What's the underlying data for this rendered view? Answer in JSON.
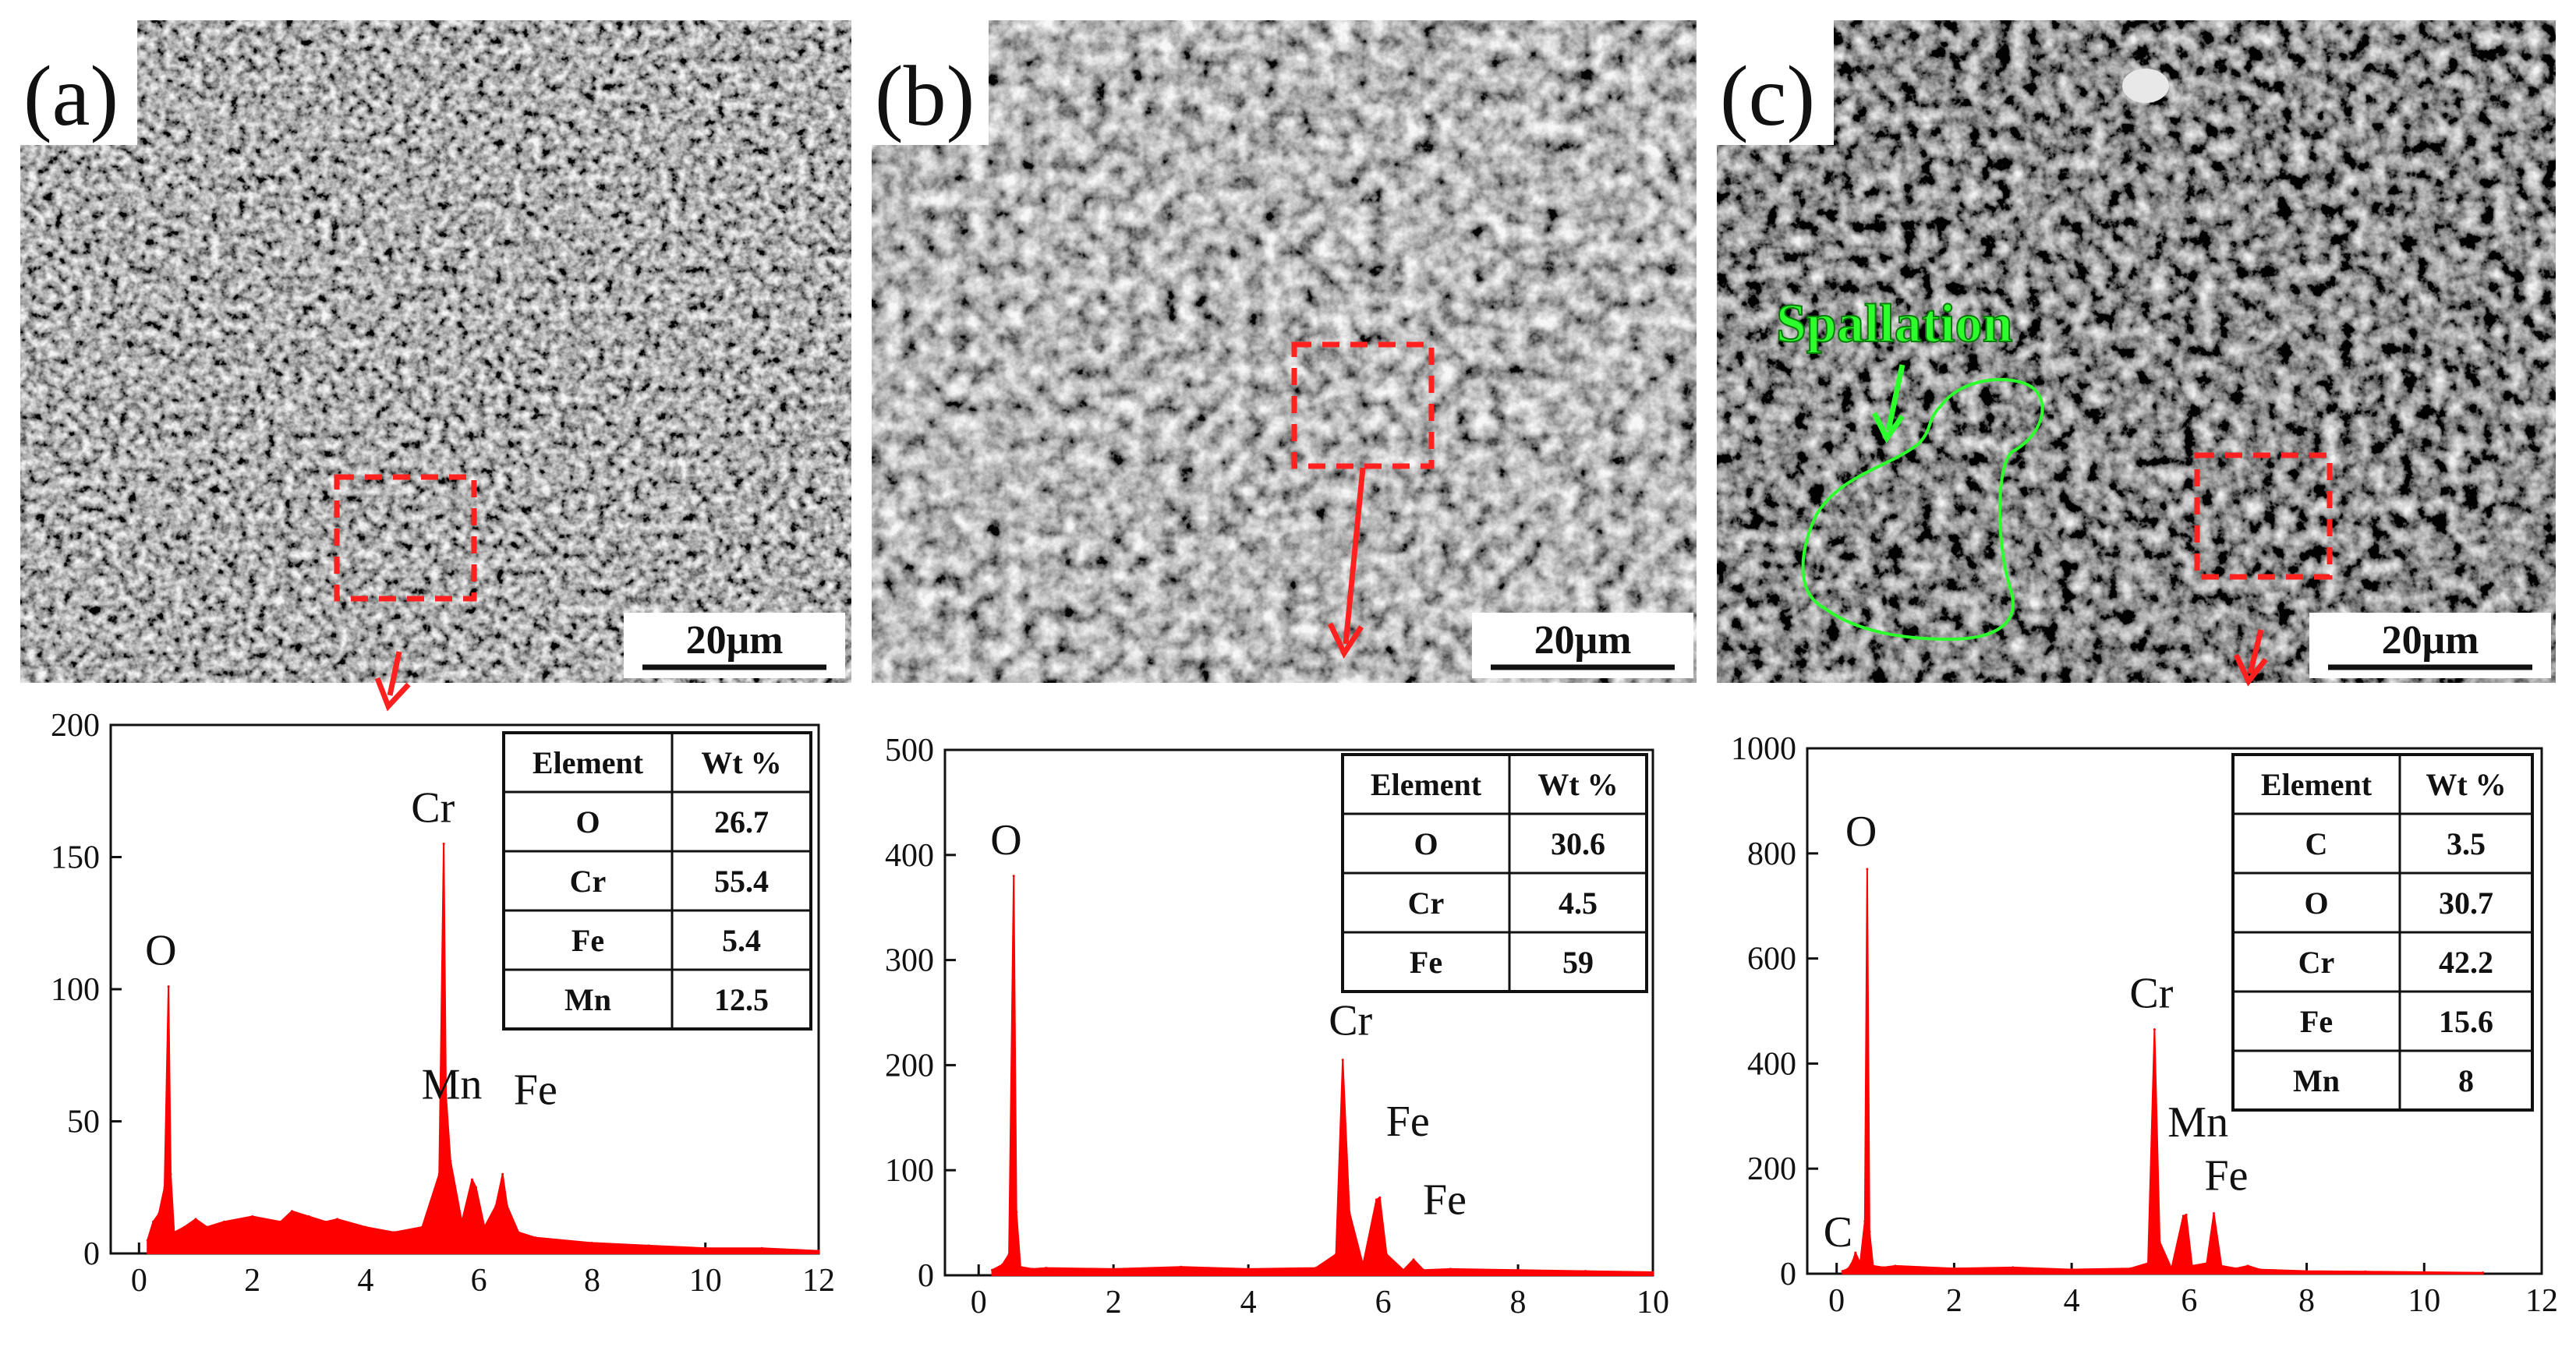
{
  "panels": [
    {
      "label": "(a)",
      "scale_bar": "20μm",
      "eds_table": {
        "headers": [
          "Element",
          "Wt %"
        ],
        "rows": [
          [
            "O",
            "26.7"
          ],
          [
            "Cr",
            "55.4"
          ],
          [
            "Fe",
            "5.4"
          ],
          [
            "Mn",
            "12.5"
          ]
        ]
      }
    },
    {
      "label": "(b)",
      "scale_bar": "20μm",
      "eds_table": {
        "headers": [
          "Element",
          "Wt %"
        ],
        "rows": [
          [
            "O",
            "30.6"
          ],
          [
            "Cr",
            "4.5"
          ],
          [
            "Fe",
            "59"
          ]
        ]
      }
    },
    {
      "label": "(c)",
      "scale_bar": "20μm",
      "annotation": "Spallation",
      "eds_table": {
        "headers": [
          "Element",
          "Wt %"
        ],
        "rows": [
          [
            "C",
            "3.5"
          ],
          [
            "O",
            "30.7"
          ],
          [
            "Cr",
            "42.2"
          ],
          [
            "Fe",
            "15.6"
          ],
          [
            "Mn",
            "8"
          ]
        ]
      }
    }
  ],
  "chart_data": [
    {
      "type": "line",
      "x": [
        0.15,
        0.25,
        0.35,
        0.45,
        0.52,
        0.56,
        0.62,
        0.8,
        1.0,
        1.2,
        1.5,
        2.0,
        2.5,
        2.7,
        3.0,
        3.3,
        3.5,
        4.0,
        4.5,
        5.0,
        5.3,
        5.38,
        5.42,
        5.5,
        5.7,
        5.88,
        5.95,
        6.1,
        6.3,
        6.42,
        6.5,
        6.7,
        7.0,
        8.0,
        9.0,
        10.0,
        11.0,
        12.0
      ],
      "y": [
        5,
        12,
        15,
        25,
        101,
        30,
        8,
        10,
        13,
        10,
        12,
        14,
        12,
        16,
        14,
        12,
        13,
        10,
        8,
        10,
        30,
        155,
        60,
        35,
        12,
        28,
        25,
        10,
        18,
        30,
        18,
        8,
        6,
        4,
        3,
        2,
        2,
        1
      ],
      "xlim": [
        -0.5,
        12
      ],
      "ylim": [
        0,
        200
      ],
      "xticks": [
        0,
        2,
        4,
        6,
        8,
        10,
        12
      ],
      "yticks": [
        0,
        50,
        100,
        150,
        200
      ],
      "color": "#ff0000",
      "peaks": [
        {
          "label": "O",
          "x": 0.52,
          "y": 101
        },
        {
          "label": "Cr",
          "x": 5.41,
          "y": 155
        },
        {
          "label": "Mn",
          "x": 5.4,
          "y": 52
        },
        {
          "label": "Fe",
          "x": 6.45,
          "y": 50
        }
      ]
    },
    {
      "type": "line",
      "x": [
        0.2,
        0.35,
        0.45,
        0.52,
        0.56,
        0.62,
        0.8,
        1.0,
        2.0,
        3.0,
        4.0,
        5.0,
        5.3,
        5.4,
        5.5,
        5.7,
        5.9,
        5.95,
        6.05,
        6.3,
        6.45,
        6.6,
        7.0,
        8.0,
        9.0,
        10.0
      ],
      "y": [
        5,
        10,
        20,
        380,
        60,
        8,
        6,
        7,
        6,
        8,
        6,
        7,
        20,
        205,
        60,
        10,
        72,
        74,
        20,
        5,
        15,
        5,
        6,
        5,
        4,
        3
      ],
      "xlim": [
        -0.5,
        10
      ],
      "ylim": [
        0,
        500
      ],
      "xticks": [
        0,
        2,
        4,
        6,
        8,
        10
      ],
      "yticks": [
        0,
        100,
        200,
        300,
        400,
        500
      ],
      "color": "#ff0000",
      "peaks": [
        {
          "label": "O",
          "x": 0.52,
          "y": 380
        },
        {
          "label": "Cr",
          "x": 5.4,
          "y": 205
        },
        {
          "label": "Fe",
          "x": 5.95,
          "y": 118
        },
        {
          "label": "Fe",
          "x": 6.45,
          "y": 48
        }
      ]
    },
    {
      "type": "line",
      "x": [
        0.1,
        0.2,
        0.28,
        0.32,
        0.4,
        0.48,
        0.52,
        0.56,
        0.62,
        0.8,
        1.0,
        2.0,
        3.0,
        4.0,
        5.0,
        5.3,
        5.41,
        5.5,
        5.7,
        5.9,
        5.95,
        6.05,
        6.3,
        6.42,
        6.55,
        6.8,
        7.0,
        7.2,
        8.0,
        9.0,
        10.0,
        11.0
      ],
      "y": [
        5,
        10,
        25,
        40,
        20,
        100,
        770,
        80,
        15,
        12,
        15,
        10,
        12,
        8,
        10,
        20,
        465,
        60,
        10,
        110,
        112,
        15,
        20,
        115,
        15,
        10,
        15,
        8,
        5,
        4,
        3,
        2
      ],
      "xlim": [
        -0.5,
        12
      ],
      "ylim": [
        0,
        1000
      ],
      "xticks": [
        0,
        2,
        4,
        6,
        8,
        10,
        12
      ],
      "yticks": [
        0,
        200,
        400,
        600,
        800,
        1000
      ],
      "color": "#ff0000",
      "peaks": [
        {
          "label": "C",
          "x": 0.28,
          "y": 40
        },
        {
          "label": "O",
          "x": 0.52,
          "y": 770
        },
        {
          "label": "Cr",
          "x": 5.41,
          "y": 465
        },
        {
          "label": "Mn",
          "x": 5.9,
          "y": 190
        },
        {
          "label": "Fe",
          "x": 6.42,
          "y": 115
        }
      ]
    }
  ]
}
